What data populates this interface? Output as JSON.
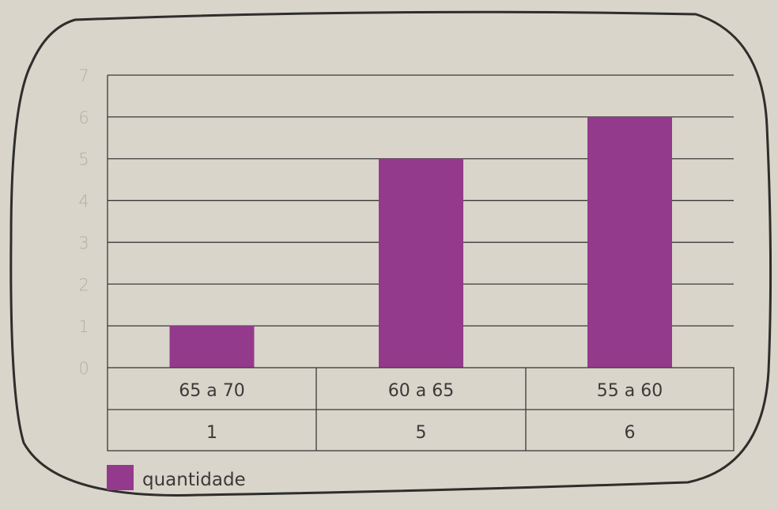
{
  "chart_data": {
    "type": "bar",
    "categories": [
      "65 a 70",
      "60 a 65",
      "55 a 60"
    ],
    "series": [
      {
        "name": "quantidade",
        "values": [
          1,
          5,
          6
        ],
        "color": "#943a8c"
      }
    ],
    "table_values": [
      "1",
      "5",
      "6"
    ],
    "yticks": [
      "0",
      "1",
      "2",
      "3",
      "4",
      "5",
      "6",
      "7"
    ],
    "ylim": [
      0,
      7
    ],
    "grid": true,
    "legend": "bottom-left",
    "title": "",
    "xlabel": "",
    "ylabel": ""
  },
  "colors": {
    "background": "#d9d5cb",
    "bar": "#943a8c",
    "gridline": "#3b3a37",
    "frame": "#2f2e2b"
  }
}
